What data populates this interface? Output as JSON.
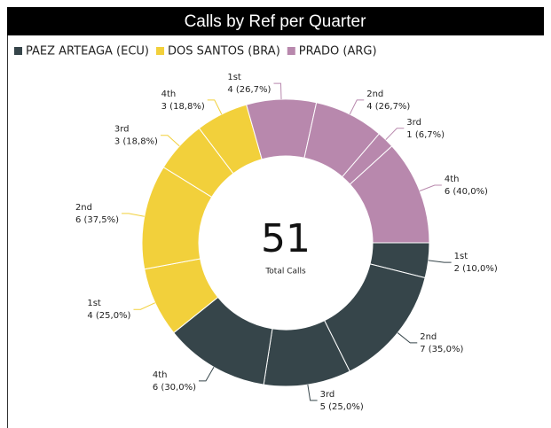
{
  "chart_data": {
    "type": "donut",
    "title": "Calls by Ref per Quarter",
    "categories": [
      "1st",
      "2nd",
      "3rd",
      "4th"
    ],
    "series": [
      {
        "name": "PAEZ ARTEAGA (ECU)",
        "color": "#36454a",
        "values": [
          2,
          7,
          5,
          6
        ],
        "value_labels": [
          "2 (10,0%)",
          "7 (35,0%)",
          "5 (25,0%)",
          "6 (30,0%)"
        ]
      },
      {
        "name": "DOS SANTOS (BRA)",
        "color": "#f2d03b",
        "values": [
          4,
          6,
          3,
          3
        ],
        "value_labels": [
          "4 (25,0%)",
          "6 (37,5%)",
          "3 (18,8%)",
          "3 (18,8%)"
        ]
      },
      {
        "name": "PRADO (ARG)",
        "color": "#b888ad",
        "values": [
          4,
          4,
          1,
          6
        ],
        "value_labels": [
          "4 (26,7%)",
          "4 (26,7%)",
          "1 (6,7%)",
          "6 (40,0%)"
        ]
      }
    ],
    "total": 51,
    "total_label": "Total Calls"
  }
}
